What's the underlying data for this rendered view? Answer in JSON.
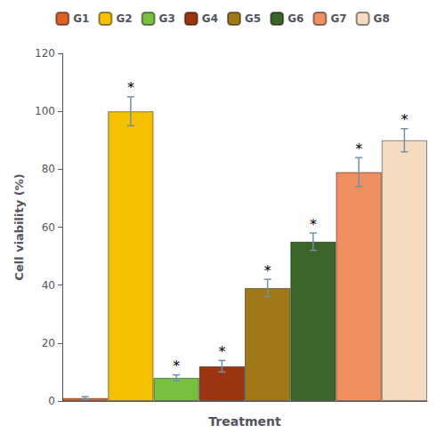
{
  "chart_data": {
    "type": "bar",
    "categories": [
      "G1",
      "G2",
      "G3",
      "G4",
      "G5",
      "G6",
      "G7",
      "G8"
    ],
    "values": [
      1,
      100,
      8,
      12,
      39,
      55,
      79,
      90
    ],
    "errors": [
      0.5,
      5,
      1,
      2,
      3,
      3,
      5,
      4
    ],
    "colors": [
      "#E06020",
      "#F5C000",
      "#78C040",
      "#9B3510",
      "#A07818",
      "#3A6428",
      "#F09060",
      "#F5DCC0"
    ],
    "xlabel": "Treatment",
    "ylabel": "Cell viability (%)",
    "ylim": [
      0,
      120
    ],
    "yticks": [
      0,
      20,
      40,
      60,
      80,
      100,
      120
    ],
    "annotations": [
      {
        "text": "*",
        "category": "G2"
      },
      {
        "text": "*",
        "category": "G3"
      },
      {
        "text": "*",
        "category": "G4"
      },
      {
        "text": "*",
        "category": "G5"
      },
      {
        "text": "*",
        "category": "G6"
      },
      {
        "text": "*",
        "category": "G7"
      },
      {
        "text": "*",
        "category": "G8"
      }
    ],
    "legend": "top",
    "grid": false,
    "tick_labels": "y"
  }
}
